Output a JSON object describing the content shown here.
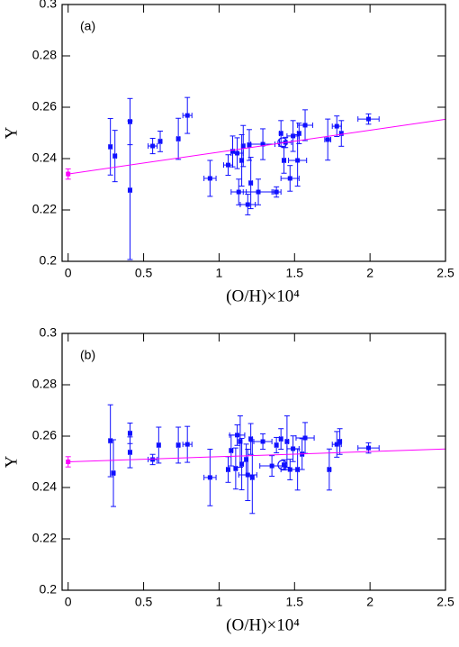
{
  "chart_data": [
    {
      "type": "scatter",
      "label": "(a)",
      "x_label": "(O/H)×10⁴",
      "y_label": "Y",
      "xlim": [
        -0.04,
        2.5
      ],
      "ylim": [
        0.2,
        0.3
      ],
      "xticks": [
        0,
        0.5,
        1,
        1.5,
        2,
        2.5
      ],
      "yticks": [
        0.2,
        0.22,
        0.24,
        0.26,
        0.28,
        0.3
      ],
      "series": [
        {
          "kind": "points",
          "color": "#1010ff",
          "x": [
            0.28,
            0.31,
            0.41,
            0.41,
            0.56,
            0.61,
            0.73,
            0.79,
            0.94,
            1.06,
            1.09,
            1.12,
            1.13,
            1.15,
            1.16,
            1.19,
            1.2,
            1.21,
            1.26,
            1.29,
            1.38,
            1.41,
            1.43,
            1.44,
            1.47,
            1.49,
            1.52,
            1.53,
            1.57,
            1.72,
            1.78,
            1.81,
            1.99
          ],
          "values": [
            0.2446,
            0.241,
            0.2544,
            0.2277,
            0.2449,
            0.2467,
            0.2477,
            0.2568,
            0.2323,
            0.2375,
            0.2428,
            0.2421,
            0.227,
            0.2393,
            0.2449,
            0.2221,
            0.2453,
            0.2305,
            0.227,
            0.2456,
            0.227,
            0.2498,
            0.2393,
            0.2463,
            0.2323,
            0.2488,
            0.2393,
            0.2498,
            0.253,
            0.2474,
            0.2526,
            0.2498,
            0.2554
          ],
          "xerr": [
            0.01,
            0.01,
            0.01,
            0.01,
            0.03,
            0.01,
            0.01,
            0.03,
            0.04,
            0.03,
            0.01,
            0.04,
            0.05,
            0.01,
            0.01,
            0.05,
            0.01,
            0.01,
            0.1,
            0.08,
            0.03,
            0.01,
            0.01,
            0.04,
            0.06,
            0.04,
            0.06,
            0.01,
            0.05,
            0.02,
            0.03,
            0.01,
            0.07
          ],
          "yerr": [
            0.011,
            0.01,
            0.009,
            0.027,
            0.003,
            0.004,
            0.008,
            0.007,
            0.007,
            0.004,
            0.006,
            0.006,
            0.005,
            0.01,
            0.008,
            0.004,
            0.006,
            0.01,
            0.005,
            0.006,
            0.002,
            0.005,
            0.005,
            0.002,
            0.005,
            0.006,
            0.01,
            0.004,
            0.006,
            0.008,
            0.004,
            0.005,
            0.002
          ]
        },
        {
          "kind": "open-circle",
          "color": "#1010ff",
          "x": [
            1.42
          ],
          "values": [
            0.2463
          ]
        },
        {
          "kind": "points",
          "color": "#ff00ff",
          "x": [
            0
          ],
          "values": [
            0.234
          ],
          "xerr": [
            0
          ],
          "yerr": [
            0.002
          ]
        },
        {
          "kind": "line",
          "color": "#ff00ff",
          "x": [
            0,
            2.5
          ],
          "values": [
            0.234,
            0.2553
          ]
        }
      ]
    },
    {
      "type": "scatter",
      "label": "(b)",
      "x_label": "(O/H)×10⁴",
      "y_label": "Y",
      "xlim": [
        -0.04,
        2.5
      ],
      "ylim": [
        0.2,
        0.3
      ],
      "xticks": [
        0,
        0.5,
        1,
        1.5,
        2,
        2.5
      ],
      "yticks": [
        0.2,
        0.22,
        0.24,
        0.26,
        0.28,
        0.3
      ],
      "series": [
        {
          "kind": "points",
          "color": "#1010ff",
          "x": [
            0.28,
            0.3,
            0.41,
            0.41,
            0.56,
            0.6,
            0.73,
            0.79,
            0.94,
            1.06,
            1.08,
            1.11,
            1.12,
            1.14,
            1.15,
            1.18,
            1.19,
            1.21,
            1.22,
            1.29,
            1.35,
            1.38,
            1.41,
            1.43,
            1.45,
            1.47,
            1.49,
            1.52,
            1.55,
            1.57,
            1.73,
            1.78,
            1.8,
            1.99
          ],
          "values": [
            0.2582,
            0.2456,
            0.2611,
            0.2537,
            0.2509,
            0.2565,
            0.2565,
            0.2568,
            0.2439,
            0.247,
            0.2544,
            0.2474,
            0.2604,
            0.2579,
            0.2491,
            0.2509,
            0.2449,
            0.2589,
            0.2439,
            0.2579,
            0.2484,
            0.2565,
            0.2589,
            0.2488,
            0.2579,
            0.247,
            0.2551,
            0.247,
            0.253,
            0.2593,
            0.247,
            0.2568,
            0.2579,
            0.2554
          ],
          "xerr": [
            0.01,
            0.01,
            0.01,
            0.01,
            0.03,
            0.01,
            0.01,
            0.03,
            0.04,
            0.01,
            0.01,
            0.01,
            0.05,
            0.01,
            0.01,
            0.01,
            0.06,
            0.01,
            0.01,
            0.06,
            0.08,
            0.01,
            0.01,
            0.01,
            0.01,
            0.06,
            0.04,
            0.01,
            0.01,
            0.06,
            0.01,
            0.03,
            0.01,
            0.07
          ],
          "yerr": [
            0.014,
            0.013,
            0.004,
            0.006,
            0.002,
            0.007,
            0.007,
            0.007,
            0.011,
            0.005,
            0.006,
            0.008,
            0.004,
            0.01,
            0.01,
            0.006,
            0.01,
            0.006,
            0.014,
            0.003,
            0.004,
            0.003,
            0.004,
            0.002,
            0.01,
            0.004,
            0.005,
            0.008,
            0.006,
            0.006,
            0.008,
            0.005,
            0.005,
            0.002
          ]
        },
        {
          "kind": "open-circle",
          "color": "#1010ff",
          "x": [
            1.42
          ],
          "values": [
            0.2488
          ]
        },
        {
          "kind": "points",
          "color": "#ff00ff",
          "x": [
            0
          ],
          "values": [
            0.25
          ],
          "xerr": [
            0
          ],
          "yerr": [
            0.002
          ]
        },
        {
          "kind": "line",
          "color": "#ff00ff",
          "x": [
            0,
            2.5
          ],
          "values": [
            0.25,
            0.255
          ]
        }
      ]
    }
  ]
}
